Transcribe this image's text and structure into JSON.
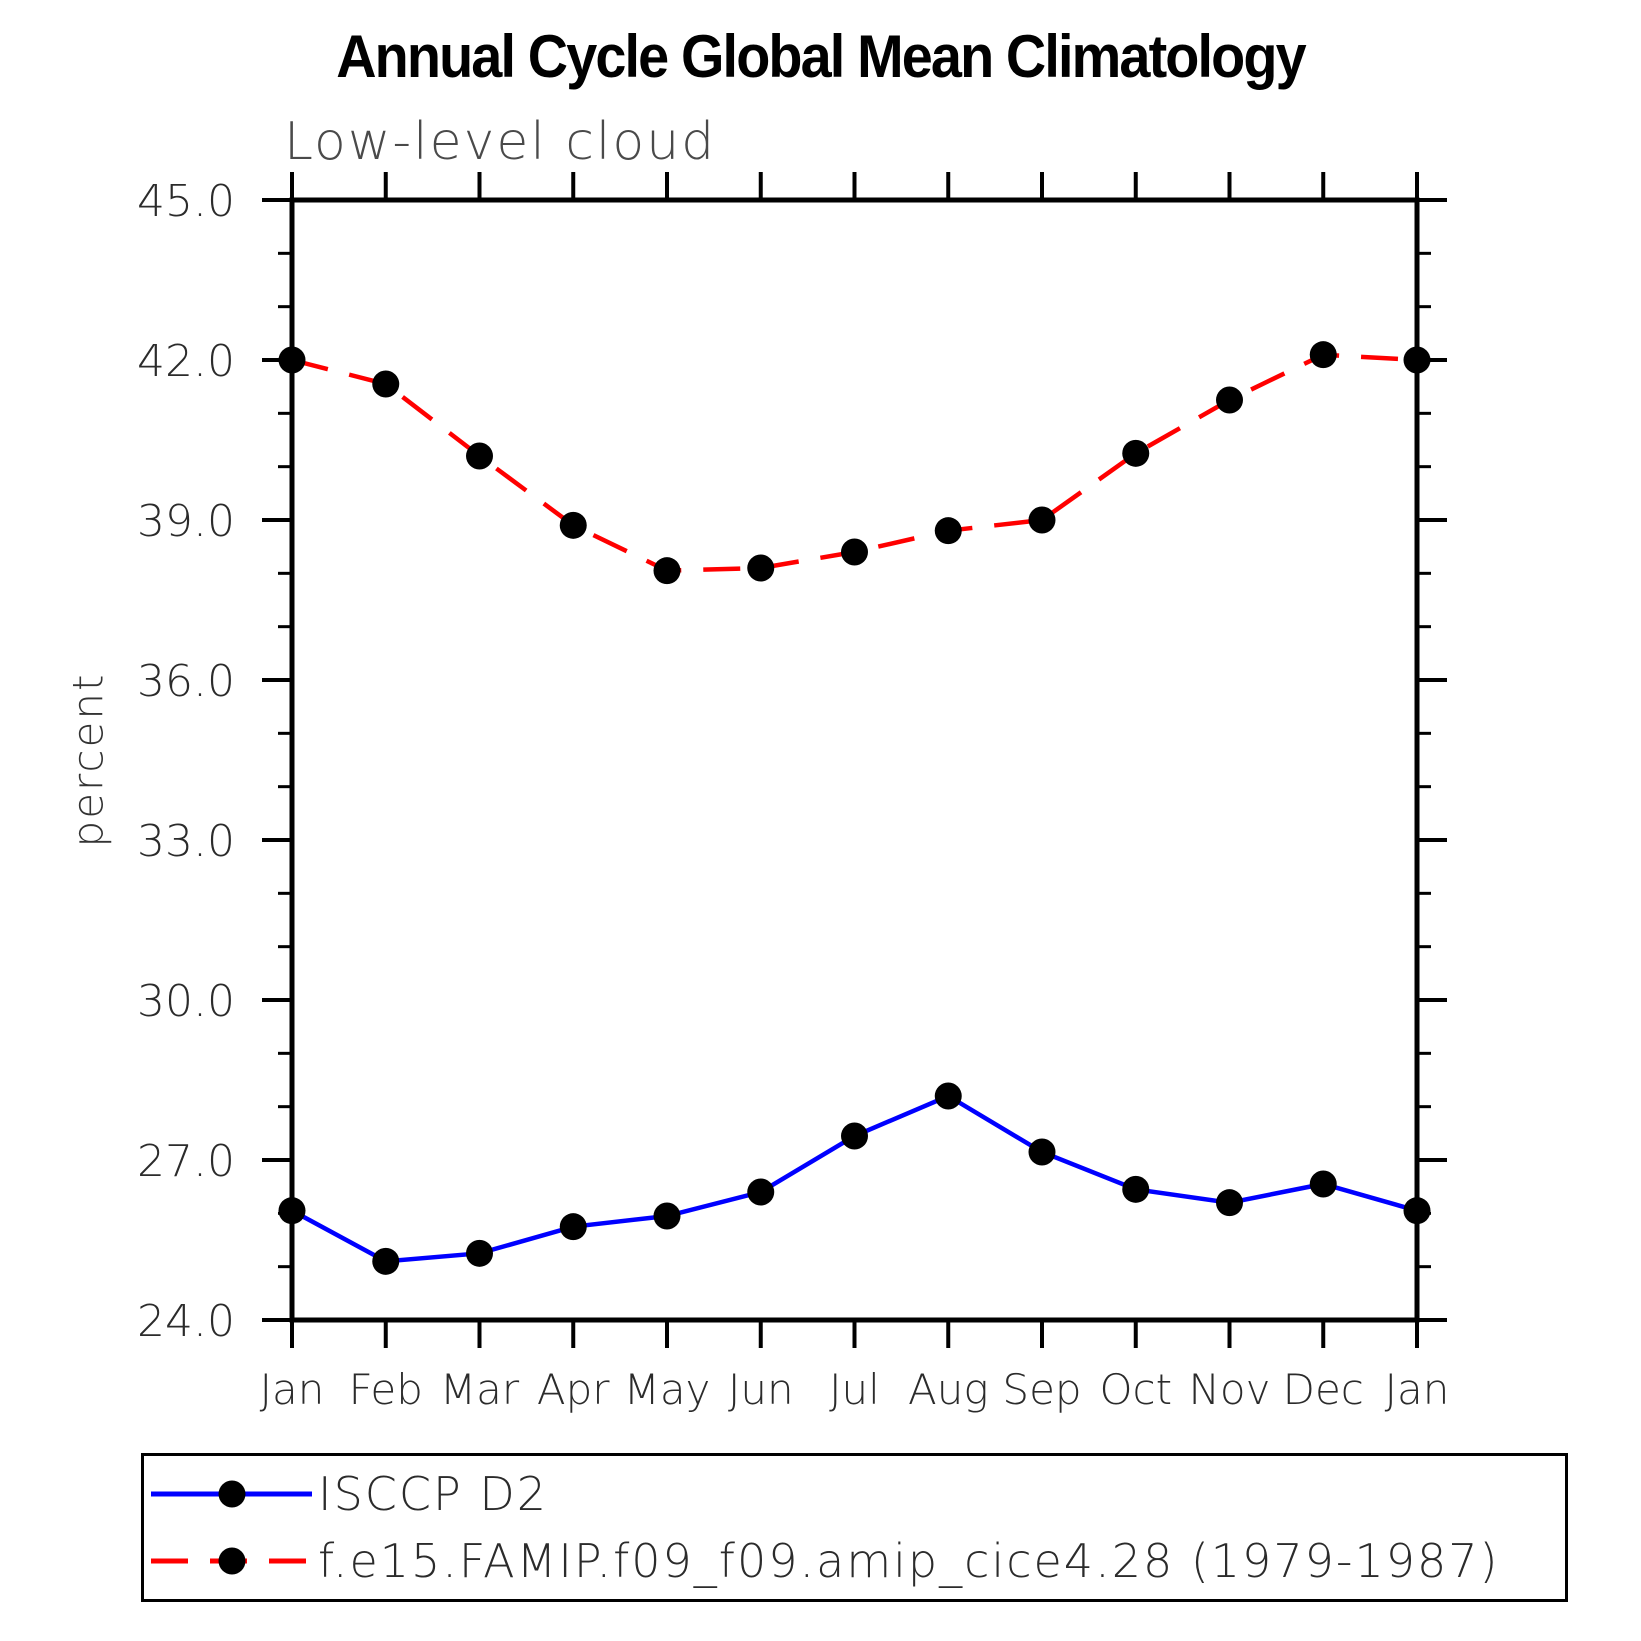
{
  "title": "Annual Cycle Global Mean Climatology",
  "subtitle": "Low-level cloud",
  "y_axis_title": "percent",
  "legend": {
    "entries": [
      {
        "label": "ISCCP D2",
        "color": "#0000ff",
        "line_style": "solid",
        "marker": "black-dot"
      },
      {
        "label": "f.e15.FAMIP.f09_f09.amip_cice4.28 (1979-1987)",
        "color": "#ff0000",
        "line_style": "dashed",
        "marker": "black-dot"
      }
    ]
  },
  "chart_data": {
    "type": "line",
    "title": "Annual Cycle Global Mean Climatology",
    "subtitle": "Low-level cloud",
    "xlabel": "",
    "ylabel": "percent",
    "categories": [
      "Jan",
      "Feb",
      "Mar",
      "Apr",
      "May",
      "Jun",
      "Jul",
      "Aug",
      "Sep",
      "Oct",
      "Nov",
      "Dec",
      "Jan"
    ],
    "series": [
      {
        "name": "ISCCP D2",
        "color": "#0000ff",
        "line_style": "solid",
        "marker": "filled-circle",
        "marker_color": "#000000",
        "values": [
          26.05,
          25.1,
          25.25,
          25.75,
          25.95,
          26.4,
          27.45,
          28.2,
          27.15,
          26.45,
          26.2,
          26.55,
          26.05
        ]
      },
      {
        "name": "f.e15.FAMIP.f09_f09.amip_cice4.28 (1979-1987)",
        "color": "#ff0000",
        "line_style": "dashed",
        "marker": "filled-circle",
        "marker_color": "#000000",
        "values": [
          42.0,
          41.55,
          40.2,
          38.9,
          38.05,
          38.1,
          38.4,
          38.8,
          39.0,
          40.25,
          41.25,
          42.1,
          42.0
        ]
      }
    ],
    "ylim": [
      24.0,
      45.0
    ],
    "yticks": [
      24.0,
      27.0,
      30.0,
      33.0,
      36.0,
      39.0,
      42.0,
      45.0
    ],
    "ytick_labels": [
      "24.0",
      "27.0",
      "30.0",
      "33.0",
      "36.0",
      "39.0",
      "42.0",
      "45.0"
    ],
    "y_minor_tick_interval": 1.0,
    "grid": false,
    "legend_position": "bottom-left-box"
  }
}
